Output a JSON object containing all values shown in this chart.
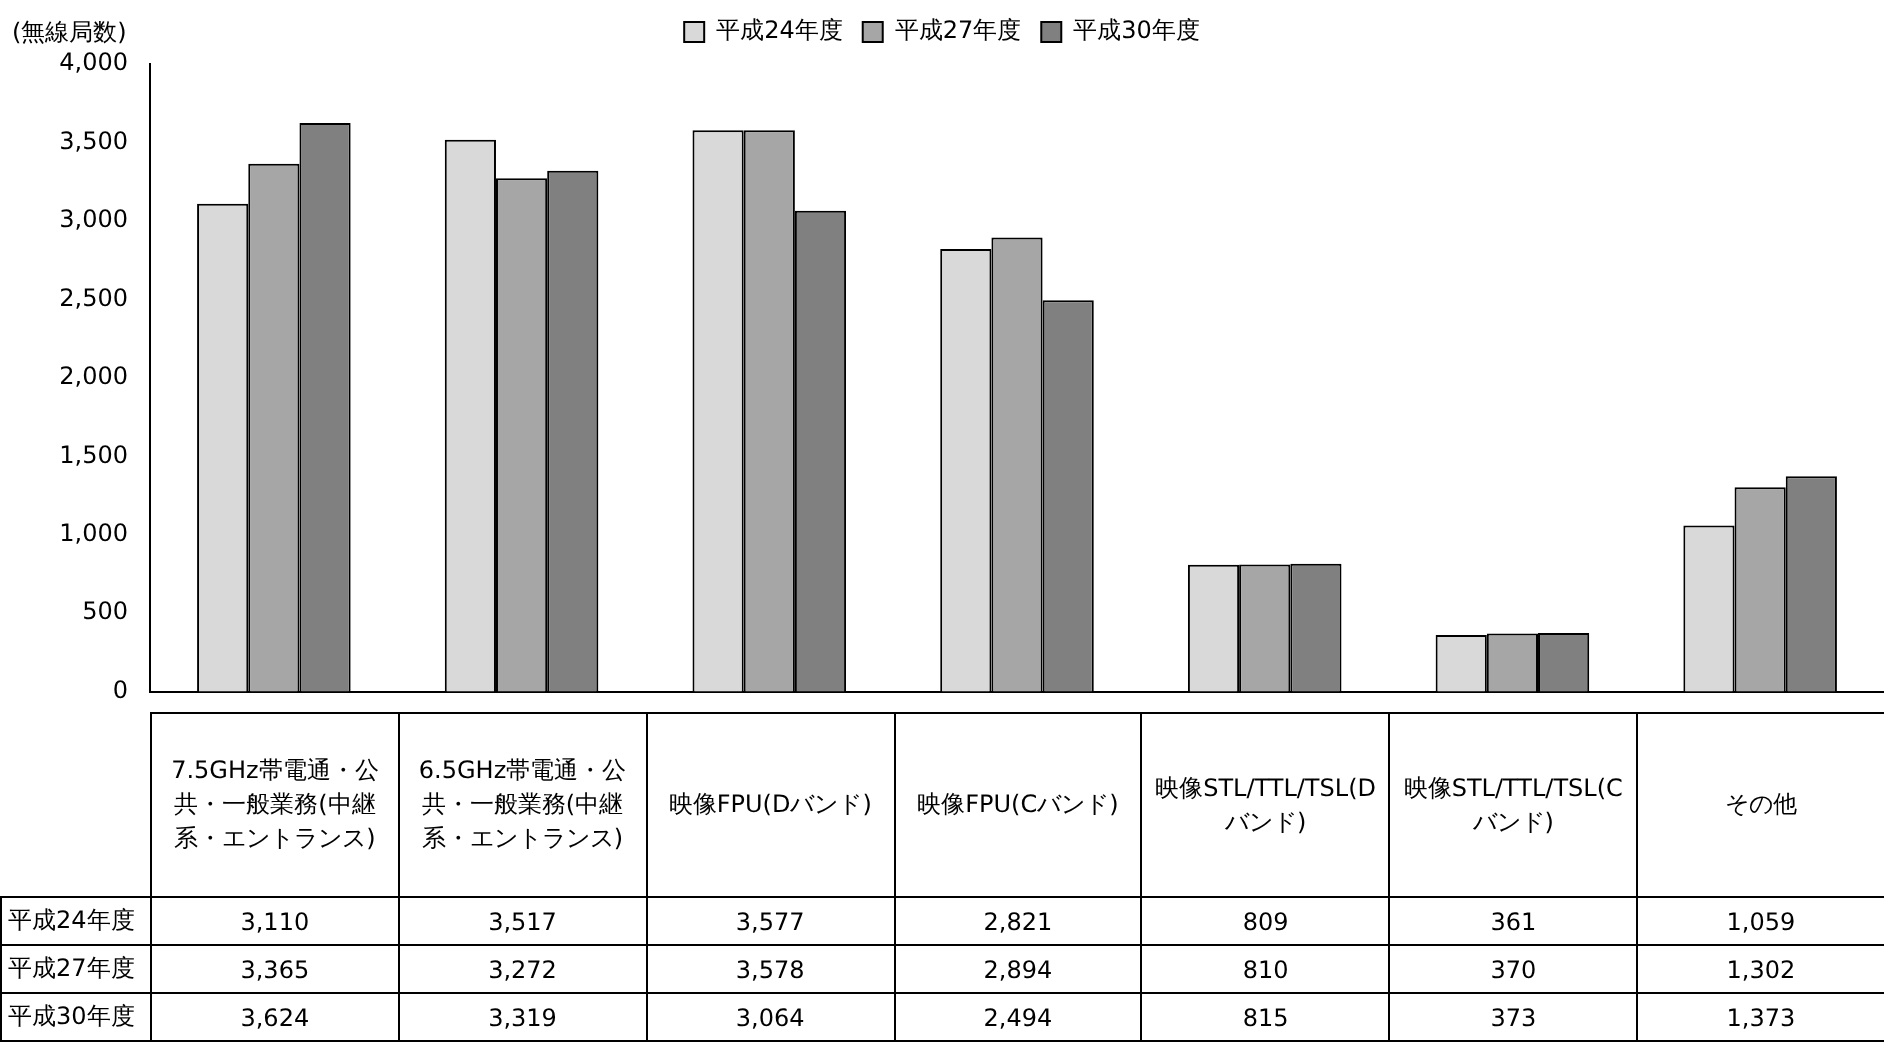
{
  "chart_data": {
    "type": "bar",
    "ylabel": "(無線局数)",
    "categories": [
      "7.5GHz帯電通・公共・一般業務(中継系・エントランス)",
      "6.5GHz帯電通・公共・一般業務(中継系・エントランス)",
      "映像FPU(Dバンド)",
      "映像FPU(Cバンド)",
      "映像STL/TTL/TSL(Dバンド)",
      "映像STL/TTL/TSL(Cバンド)",
      "その他"
    ],
    "series": [
      {
        "name": "平成24年度",
        "color": "#d9d9d9",
        "values": [
          3110,
          3517,
          3577,
          2821,
          809,
          361,
          1059
        ],
        "value_labels": [
          "3,110",
          "3,517",
          "3,577",
          "2,821",
          "809",
          "361",
          "1,059"
        ]
      },
      {
        "name": "平成27年度",
        "color": "#a6a6a6",
        "values": [
          3365,
          3272,
          3578,
          2894,
          810,
          370,
          1302
        ],
        "value_labels": [
          "3,365",
          "3,272",
          "3,578",
          "2,894",
          "810",
          "370",
          "1,302"
        ]
      },
      {
        "name": "平成30年度",
        "color": "#808080",
        "values": [
          3624,
          3319,
          3064,
          2494,
          815,
          373,
          1373
        ],
        "value_labels": [
          "3,624",
          "3,319",
          "3,064",
          "2,494",
          "815",
          "373",
          "1,373"
        ]
      }
    ],
    "ylim": [
      0,
      4000
    ],
    "yticks": [
      0,
      500,
      {
        "value": 1000,
        "label": "1,000"
      },
      {
        "value": 1500,
        "label": "1,500"
      },
      {
        "value": 2000,
        "label": "2,000"
      },
      {
        "value": 2500,
        "label": "2,500"
      },
      {
        "value": 3000,
        "label": "3,000"
      },
      {
        "value": 3500,
        "label": "3,500"
      },
      {
        "value": 4000,
        "label": "4,000"
      }
    ],
    "legend": "top"
  }
}
